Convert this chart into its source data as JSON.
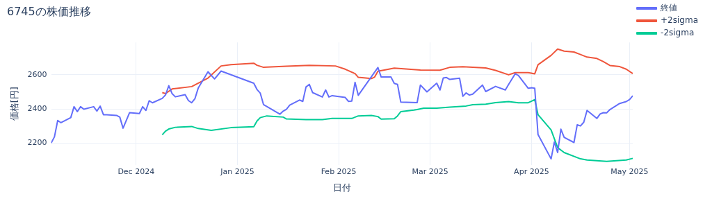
{
  "chart_data": {
    "type": "line",
    "title": "6745の株価推移",
    "xlabel": "日付",
    "ylabel": "価格[円]",
    "xlim": [
      "2024-11-05",
      "2025-05-02"
    ],
    "xticks": [
      {
        "value": "2024-12-01",
        "label": "Dec 2024"
      },
      {
        "value": "2025-01-01",
        "label": "Jan 2025"
      },
      {
        "value": "2025-02-01",
        "label": "Feb 2025"
      },
      {
        "value": "2025-03-01",
        "label": "Mar 2025"
      },
      {
        "value": "2025-04-01",
        "label": "Apr 2025"
      },
      {
        "value": "2025-05-01",
        "label": "May 2025"
      }
    ],
    "ylim": [
      2070,
      2790
    ],
    "yticks": [
      2200,
      2400,
      2600
    ],
    "grid": true,
    "legend": "top right",
    "marker": "none",
    "line_style": "solid",
    "series": [
      {
        "name": "終値",
        "color": "#636efa",
        "x": [
          "2024-11-05",
          "2024-11-06",
          "2024-11-07",
          "2024-11-08",
          "2024-11-11",
          "2024-11-12",
          "2024-11-13",
          "2024-11-14",
          "2024-11-15",
          "2024-11-18",
          "2024-11-19",
          "2024-11-20",
          "2024-11-21",
          "2024-11-22",
          "2024-11-25",
          "2024-11-26",
          "2024-11-27",
          "2024-11-29",
          "2024-12-02",
          "2024-12-03",
          "2024-12-04",
          "2024-12-05",
          "2024-12-06",
          "2024-12-09",
          "2024-12-10",
          "2024-12-11",
          "2024-12-12",
          "2024-12-13",
          "2024-12-16",
          "2024-12-17",
          "2024-12-18",
          "2024-12-19",
          "2024-12-20",
          "2024-12-23",
          "2024-12-25",
          "2024-12-27",
          "2025-01-06",
          "2025-01-07",
          "2025-01-08",
          "2025-01-09",
          "2025-01-14",
          "2025-01-15",
          "2025-01-16",
          "2025-01-17",
          "2025-01-20",
          "2025-01-21",
          "2025-01-22",
          "2025-01-23",
          "2025-01-24",
          "2025-01-27",
          "2025-01-28",
          "2025-01-29",
          "2025-01-30",
          "2025-02-03",
          "2025-02-04",
          "2025-02-05",
          "2025-02-06",
          "2025-02-07",
          "2025-02-13",
          "2025-02-14",
          "2025-02-17",
          "2025-02-18",
          "2025-02-19",
          "2025-02-20",
          "2025-02-25",
          "2025-02-26",
          "2025-02-28",
          "2025-03-03",
          "2025-03-04",
          "2025-03-05",
          "2025-03-06",
          "2025-03-07",
          "2025-03-10",
          "2025-03-11",
          "2025-03-12",
          "2025-03-13",
          "2025-03-14",
          "2025-03-17",
          "2025-03-18",
          "2025-03-21",
          "2025-03-24",
          "2025-03-25",
          "2025-03-27",
          "2025-03-28",
          "2025-03-31",
          "2025-04-01",
          "2025-04-02",
          "2025-04-03",
          "2025-04-07",
          "2025-04-08",
          "2025-04-09",
          "2025-04-10",
          "2025-04-11",
          "2025-04-14",
          "2025-04-15",
          "2025-04-16",
          "2025-04-17",
          "2025-04-18",
          "2025-04-21",
          "2025-04-22",
          "2025-04-23",
          "2025-04-24",
          "2025-04-25",
          "2025-04-28",
          "2025-04-30",
          "2025-05-01",
          "2025-05-02"
        ],
        "values": [
          2200,
          2236,
          2332,
          2319,
          2349,
          2413,
          2384,
          2413,
          2398,
          2413,
          2387,
          2416,
          2366,
          2366,
          2362,
          2352,
          2287,
          2378,
          2373,
          2413,
          2391,
          2448,
          2436,
          2462,
          2482,
          2536,
          2490,
          2471,
          2484,
          2449,
          2436,
          2460,
          2522,
          2618,
          2576,
          2622,
          2551,
          2514,
          2492,
          2425,
          2369,
          2387,
          2398,
          2422,
          2452,
          2444,
          2529,
          2544,
          2496,
          2470,
          2511,
          2470,
          2478,
          2467,
          2444,
          2446,
          2556,
          2480,
          2643,
          2587,
          2587,
          2550,
          2544,
          2440,
          2437,
          2540,
          2500,
          2551,
          2511,
          2581,
          2584,
          2573,
          2580,
          2474,
          2494,
          2481,
          2487,
          2540,
          2502,
          2532,
          2511,
          2544,
          2606,
          2596,
          2521,
          2524,
          2521,
          2250,
          2107,
          2206,
          2144,
          2281,
          2233,
          2203,
          2307,
          2300,
          2322,
          2391,
          2344,
          2370,
          2378,
          2377,
          2396,
          2432,
          2443,
          2455,
          2477
        ]
      },
      {
        "name": "+2sigma",
        "color": "#ef553b",
        "x": [
          "2024-12-09",
          "2024-12-10",
          "2024-12-12",
          "2024-12-18",
          "2024-12-23",
          "2024-12-27",
          "2024-12-30",
          "2025-01-06",
          "2025-01-07",
          "2025-01-09",
          "2025-01-16",
          "2025-01-23",
          "2025-01-31",
          "2025-02-03",
          "2025-02-06",
          "2025-02-07",
          "2025-02-11",
          "2025-02-12",
          "2025-02-13",
          "2025-02-18",
          "2025-02-26",
          "2025-03-04",
          "2025-03-07",
          "2025-03-11",
          "2025-03-18",
          "2025-03-21",
          "2025-03-25",
          "2025-03-27",
          "2025-03-31",
          "2025-04-02",
          "2025-04-03",
          "2025-04-07",
          "2025-04-09",
          "2025-04-11",
          "2025-04-14",
          "2025-04-16",
          "2025-04-18",
          "2025-04-21",
          "2025-04-23",
          "2025-04-25",
          "2025-04-28",
          "2025-04-30",
          "2025-05-02"
        ],
        "values": [
          2496,
          2490,
          2517,
          2531,
          2581,
          2652,
          2660,
          2668,
          2656,
          2644,
          2650,
          2656,
          2652,
          2633,
          2607,
          2585,
          2578,
          2587,
          2621,
          2639,
          2628,
          2627,
          2644,
          2647,
          2640,
          2626,
          2600,
          2613,
          2613,
          2606,
          2659,
          2714,
          2751,
          2739,
          2734,
          2719,
          2704,
          2696,
          2677,
          2655,
          2648,
          2633,
          2607
        ]
      },
      {
        "name": "-2sigma",
        "color": "#00cc96",
        "x": [
          "2024-12-09",
          "2024-12-10",
          "2024-12-11",
          "2024-12-13",
          "2024-12-18",
          "2024-12-20",
          "2024-12-24",
          "2024-12-30",
          "2025-01-06",
          "2025-01-07",
          "2025-01-08",
          "2025-01-10",
          "2025-01-15",
          "2025-01-16",
          "2025-01-22",
          "2025-01-27",
          "2025-01-30",
          "2025-02-05",
          "2025-02-07",
          "2025-02-11",
          "2025-02-13",
          "2025-02-14",
          "2025-02-18",
          "2025-02-19",
          "2025-02-20",
          "2025-02-24",
          "2025-02-25",
          "2025-02-27",
          "2025-03-03",
          "2025-03-07",
          "2025-03-12",
          "2025-03-14",
          "2025-03-18",
          "2025-03-21",
          "2025-03-25",
          "2025-03-28",
          "2025-03-31",
          "2025-04-02",
          "2025-04-03",
          "2025-04-07",
          "2025-04-09",
          "2025-04-11",
          "2025-04-16",
          "2025-04-18",
          "2025-04-24",
          "2025-04-30",
          "2025-05-02"
        ],
        "values": [
          2248,
          2270,
          2282,
          2292,
          2297,
          2285,
          2274,
          2290,
          2296,
          2329,
          2349,
          2359,
          2352,
          2341,
          2337,
          2337,
          2344,
          2344,
          2359,
          2362,
          2355,
          2340,
          2342,
          2359,
          2384,
          2393,
          2396,
          2404,
          2404,
          2410,
          2417,
          2425,
          2428,
          2437,
          2443,
          2436,
          2436,
          2455,
          2366,
          2277,
          2173,
          2144,
          2107,
          2100,
          2092,
          2100,
          2110
        ]
      }
    ]
  }
}
